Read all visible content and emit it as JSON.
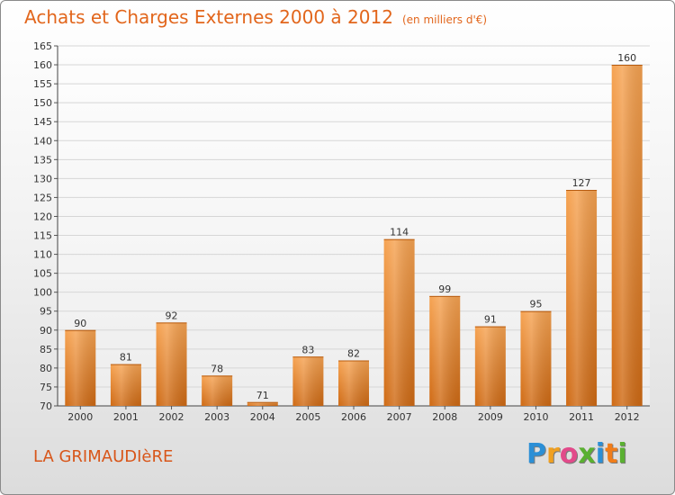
{
  "title": "Achats et Charges Externes 2000 à 2012",
  "subtitle": "(en milliers d'€)",
  "commune": "LA GRIMAUDIèRE",
  "logo": {
    "text": "Proxiti",
    "letters": [
      {
        "ch": "P",
        "color": "#2b8fd6"
      },
      {
        "ch": "r",
        "color": "#f0a020"
      },
      {
        "ch": "o",
        "color": "#e24a8a"
      },
      {
        "ch": "x",
        "color": "#5ab031"
      },
      {
        "ch": "i",
        "color": "#2b8fd6"
      },
      {
        "ch": "t",
        "color": "#f07d1a"
      },
      {
        "ch": "i",
        "color": "#5ab031"
      }
    ]
  },
  "colors": {
    "bar_light": "#f6a352",
    "bar_dark": "#cf6a14",
    "title": "#e2661c"
  },
  "chart_data": {
    "type": "bar",
    "categories": [
      "2000",
      "2001",
      "2002",
      "2003",
      "2004",
      "2005",
      "2006",
      "2007",
      "2008",
      "2009",
      "2010",
      "2011",
      "2012"
    ],
    "values": [
      90,
      81,
      92,
      78,
      71,
      83,
      82,
      114,
      99,
      91,
      95,
      127,
      160
    ],
    "ylim": [
      70,
      165
    ],
    "yticks": [
      70,
      75,
      80,
      85,
      90,
      95,
      100,
      105,
      110,
      115,
      120,
      125,
      130,
      135,
      140,
      145,
      150,
      155,
      160,
      165
    ],
    "grid": true,
    "legend": "none"
  }
}
